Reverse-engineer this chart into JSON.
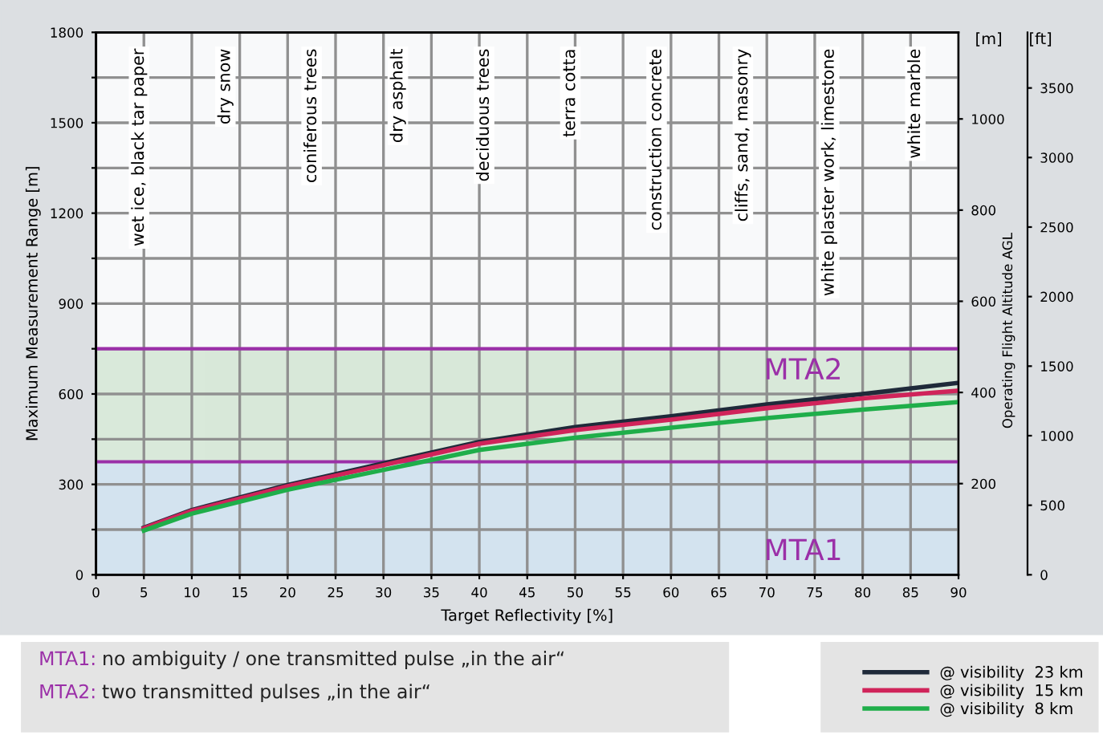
{
  "chart_data": {
    "type": "line",
    "xlabel": "Target Reflectivity [%]",
    "ylabel": "Maximum Measurement Range [m]",
    "y2label": "[m]",
    "y3label": "[ft]",
    "x": [
      5,
      10,
      20,
      30,
      40,
      50,
      60,
      70,
      80,
      90
    ],
    "series": [
      {
        "name": "@ visibility  23 km",
        "color": "#1f2a3a",
        "values": [
          156,
          215,
          298,
          370,
          441,
          490,
          526,
          565,
          600,
          637
        ]
      },
      {
        "name": "@ visibility  15 km",
        "color": "#d0245a",
        "values": [
          154,
          212,
          294,
          364,
          435,
          480,
          515,
          553,
          585,
          611
        ]
      },
      {
        "name": "@ visibility  8 km",
        "color": "#1fae4a",
        "values": [
          147,
          203,
          282,
          348,
          414,
          455,
          488,
          520,
          548,
          573
        ]
      }
    ],
    "xlim": [
      0,
      90
    ],
    "xticks": [
      0,
      5,
      10,
      15,
      20,
      25,
      30,
      35,
      40,
      45,
      50,
      55,
      60,
      65,
      70,
      75,
      80,
      85,
      90
    ],
    "ylim": [
      0,
      1800
    ],
    "yticks": [
      0,
      {
        "value": 150,
        "label": null
      },
      300,
      {
        "value": 450,
        "label": null
      },
      600,
      {
        "value": 750,
        "label": null
      },
      900,
      {
        "value": 1050,
        "label": null
      },
      1200,
      {
        "value": 1350,
        "label": null
      },
      1500,
      {
        "value": 1650,
        "label": null
      },
      1800
    ],
    "y2lim": [
      0,
      1190
    ],
    "y2ticks": [
      200,
      400,
      600,
      800,
      1000
    ],
    "y3lim": [
      0,
      3900
    ],
    "y3ticks": [
      0,
      500,
      1000,
      1500,
      2000,
      2500,
      3000,
      3500
    ],
    "bands": [
      {
        "axis": "y",
        "from": 0,
        "to": 375,
        "label": "MTA1",
        "color": "#cfe0ee"
      },
      {
        "axis": "y",
        "from": 375,
        "to": 750,
        "label": "MTA2",
        "color": "#d5e7d6"
      }
    ],
    "ref_lines": [
      {
        "axis": "y",
        "value": 375,
        "color": "#9b30a8"
      },
      {
        "axis": "y",
        "value": 750,
        "color": "#9b30a8"
      }
    ],
    "annotations": [
      "wet ice, black tar paper",
      "dry snow",
      "coniferous trees",
      "dry asphalt",
      "deciduous trees",
      "terra cotta",
      "construction concrete",
      "cliffs, sand, masonry",
      "white plaster work, limestone",
      "white marble",
      "Operating Flight Altitude AGL",
      "MTA1: no ambiguity / one transmitted pulse „in the air“",
      "MTA2: two transmitted pulses „in the air“"
    ],
    "grid": true,
    "legend": "bottom right",
    "marker": "none",
    "line_style": "solid"
  }
}
